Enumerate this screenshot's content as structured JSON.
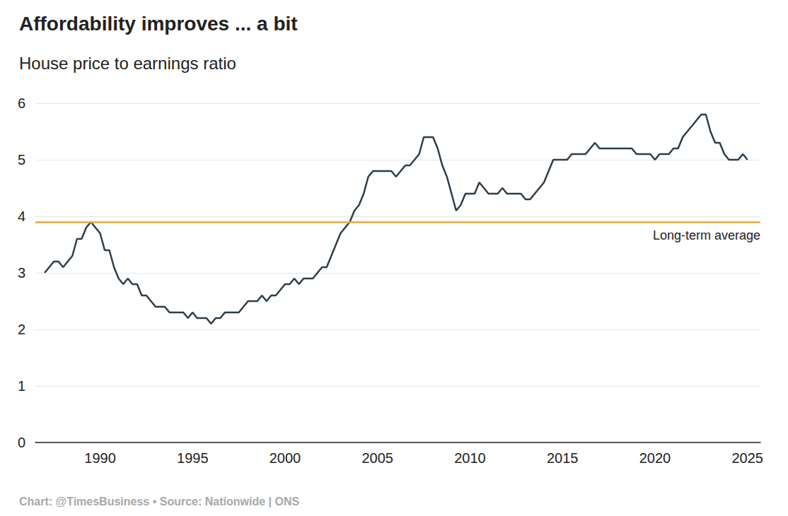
{
  "chart_data": {
    "type": "line",
    "title": "Affordability improves ... a bit",
    "subtitle": "House price to earnings ratio",
    "source": "Chart: @TimesBusiness • Source: Nationwide | ONS",
    "color": "#2d3e4a",
    "x": [
      1987,
      1987.25,
      1987.5,
      1987.75,
      1988,
      1988.25,
      1988.5,
      1988.75,
      1989,
      1989.25,
      1989.5,
      1989.75,
      1990,
      1990.25,
      1990.5,
      1990.75,
      1991,
      1991.25,
      1991.5,
      1991.75,
      1992,
      1992.25,
      1992.5,
      1992.75,
      1993,
      1993.25,
      1993.5,
      1993.75,
      1994,
      1994.25,
      1994.5,
      1994.75,
      1995,
      1995.25,
      1995.5,
      1995.75,
      1996,
      1996.25,
      1996.5,
      1996.75,
      1997,
      1997.25,
      1997.5,
      1997.75,
      1998,
      1998.25,
      1998.5,
      1998.75,
      1999,
      1999.25,
      1999.5,
      1999.75,
      2000,
      2000.25,
      2000.5,
      2000.75,
      2001,
      2001.25,
      2001.5,
      2001.75,
      2002,
      2002.25,
      2002.5,
      2002.75,
      2003,
      2003.25,
      2003.5,
      2003.75,
      2004,
      2004.25,
      2004.5,
      2004.75,
      2005,
      2005.25,
      2005.5,
      2005.75,
      2006,
      2006.25,
      2006.5,
      2006.75,
      2007,
      2007.25,
      2007.5,
      2007.75,
      2008,
      2008.25,
      2008.5,
      2008.75,
      2009,
      2009.25,
      2009.5,
      2009.75,
      2010,
      2010.25,
      2010.5,
      2010.75,
      2011,
      2011.25,
      2011.5,
      2011.75,
      2012,
      2012.25,
      2012.5,
      2012.75,
      2013,
      2013.25,
      2013.5,
      2013.75,
      2014,
      2014.25,
      2014.5,
      2014.75,
      2015,
      2015.25,
      2015.5,
      2015.75,
      2016,
      2016.25,
      2016.5,
      2016.75,
      2017,
      2017.25,
      2017.5,
      2017.75,
      2018,
      2018.25,
      2018.5,
      2018.75,
      2019,
      2019.25,
      2019.5,
      2019.75,
      2020,
      2020.25,
      2020.5,
      2020.75,
      2021,
      2021.25,
      2021.5,
      2021.75,
      2022,
      2022.25,
      2022.5,
      2022.75,
      2023,
      2023.25,
      2023.5,
      2023.75,
      2024,
      2024.25,
      2024.5,
      2024.75,
      2025
    ],
    "values": [
      3.0,
      3.1,
      3.2,
      3.2,
      3.1,
      3.2,
      3.3,
      3.6,
      3.6,
      3.8,
      3.9,
      3.8,
      3.7,
      3.4,
      3.4,
      3.1,
      2.9,
      2.8,
      2.9,
      2.8,
      2.8,
      2.6,
      2.6,
      2.5,
      2.4,
      2.4,
      2.4,
      2.3,
      2.3,
      2.3,
      2.3,
      2.2,
      2.3,
      2.2,
      2.2,
      2.2,
      2.1,
      2.2,
      2.2,
      2.3,
      2.3,
      2.3,
      2.3,
      2.4,
      2.5,
      2.5,
      2.5,
      2.6,
      2.5,
      2.6,
      2.6,
      2.7,
      2.8,
      2.8,
      2.9,
      2.8,
      2.9,
      2.9,
      2.9,
      3.0,
      3.1,
      3.1,
      3.3,
      3.5,
      3.7,
      3.8,
      3.9,
      4.1,
      4.2,
      4.4,
      4.7,
      4.8,
      4.8,
      4.8,
      4.8,
      4.8,
      4.7,
      4.8,
      4.9,
      4.9,
      5.0,
      5.1,
      5.4,
      5.4,
      5.4,
      5.2,
      4.9,
      4.7,
      4.4,
      4.1,
      4.2,
      4.4,
      4.4,
      4.4,
      4.6,
      4.5,
      4.4,
      4.4,
      4.4,
      4.5,
      4.4,
      4.4,
      4.4,
      4.4,
      4.3,
      4.3,
      4.4,
      4.5,
      4.6,
      4.8,
      5.0,
      5.0,
      5.0,
      5.0,
      5.1,
      5.1,
      5.1,
      5.1,
      5.2,
      5.3,
      5.2,
      5.2,
      5.2,
      5.2,
      5.2,
      5.2,
      5.2,
      5.2,
      5.1,
      5.1,
      5.1,
      5.1,
      5.0,
      5.1,
      5.1,
      5.1,
      5.2,
      5.2,
      5.4,
      5.5,
      5.6,
      5.7,
      5.8,
      5.8,
      5.5,
      5.3,
      5.3,
      5.1,
      5.0,
      5.0,
      5.0,
      5.1,
      5.0
    ],
    "reference_line": {
      "value": 3.9,
      "label": "Long-term average",
      "color": "#e3ab3c"
    },
    "xlim": [
      1986.5,
      2025.7
    ],
    "xticks": [
      1990,
      1995,
      2000,
      2005,
      2010,
      2015,
      2020,
      2025
    ],
    "ylim": [
      0,
      6
    ],
    "yticks": [
      0,
      1,
      2,
      3,
      4,
      5,
      6
    ],
    "grid": true
  }
}
